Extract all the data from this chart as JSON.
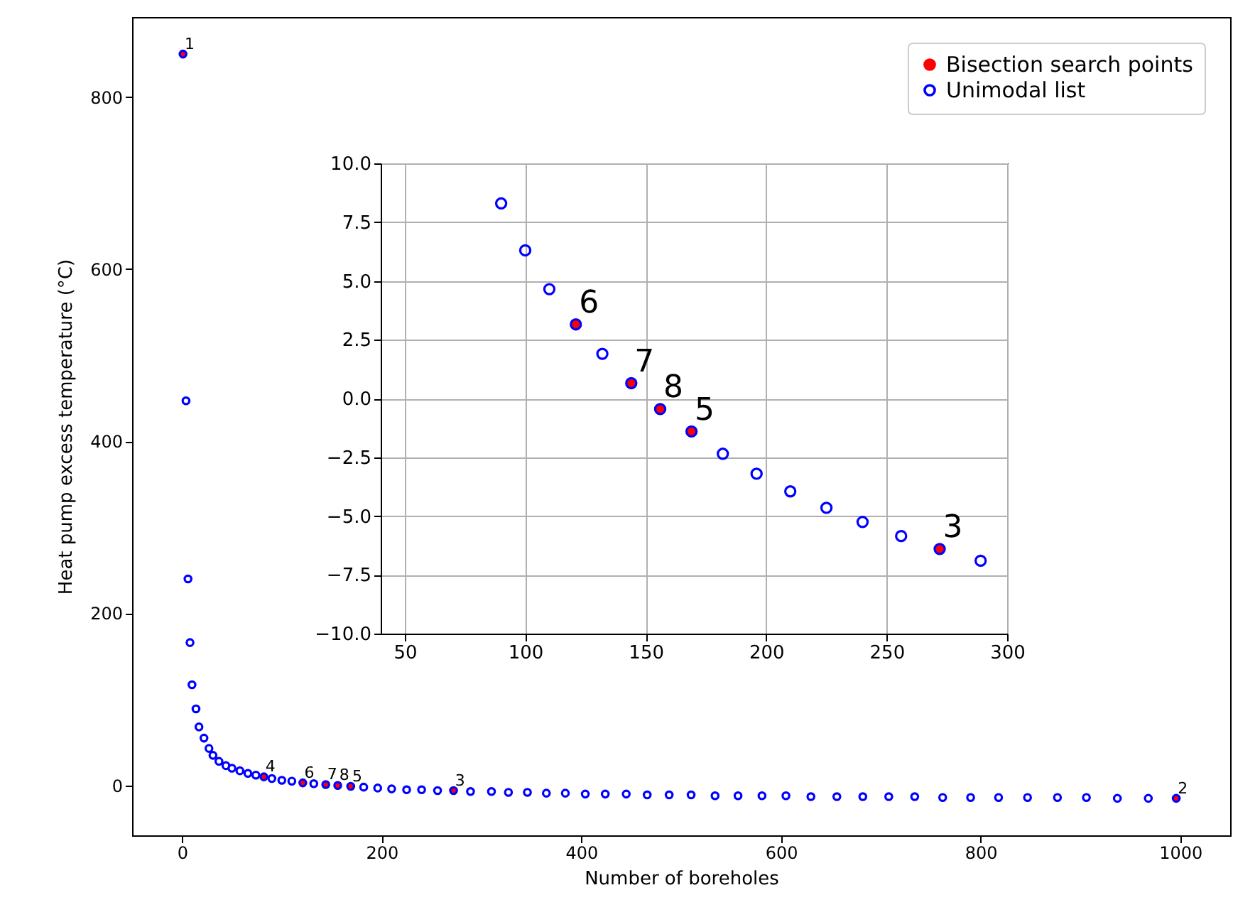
{
  "chart_data": [
    {
      "type": "scatter",
      "xlabel": "Number of boreholes",
      "ylabel": "Heat pump excess temperature (°C)",
      "xlim": [
        -50,
        1050
      ],
      "ylim": [
        -58,
        893
      ],
      "xticks": [
        0,
        200,
        400,
        600,
        800,
        1000
      ],
      "yticks": [
        0,
        200,
        400,
        600,
        800
      ],
      "grid": false,
      "legend": "top right",
      "marker": "circle",
      "annotations": [
        {
          "text": "1",
          "x": 1,
          "y": 850
        },
        {
          "text": "2",
          "x": 996,
          "y": -15
        },
        {
          "text": "3",
          "x": 272,
          "y": -6
        },
        {
          "text": "4",
          "x": 82,
          "y": 10
        },
        {
          "text": "5",
          "x": 169,
          "y": -1
        },
        {
          "text": "6",
          "x": 121,
          "y": 3
        },
        {
          "text": "7",
          "x": 144,
          "y": 1
        },
        {
          "text": "8",
          "x": 156,
          "y": 0
        }
      ],
      "series": [
        {
          "name": "Bisection search points",
          "color": "#ff0000",
          "x": [
            1,
            996,
            272,
            82,
            169,
            121,
            144,
            156
          ],
          "values": [
            850,
            -15,
            -6,
            10,
            -1,
            3,
            1,
            0
          ]
        },
        {
          "name": "Unimodal list",
          "color": "#0000ff",
          "x": [
            1,
            4,
            6,
            8,
            10,
            14,
            17,
            22,
            27,
            31,
            37,
            44,
            50,
            58,
            66,
            74,
            82,
            90,
            100,
            110,
            121,
            132,
            144,
            156,
            169,
            182,
            196,
            210,
            225,
            240,
            256,
            272,
            289,
            310,
            327,
            346,
            365,
            384,
            404,
            424,
            445,
            466,
            488,
            510,
            534,
            557,
            581,
            605,
            630,
            656,
            682,
            708,
            734,
            762,
            790,
            818,
            847,
            877,
            906,
            937,
            968,
            996
          ],
          "values": [
            850,
            447,
            240,
            166,
            117,
            89,
            68,
            55,
            43,
            35,
            28,
            23,
            20,
            17,
            14,
            12,
            10,
            8,
            6,
            5,
            3,
            2,
            1,
            0,
            -1,
            -2,
            -3,
            -4,
            -5,
            -5,
            -6,
            -6,
            -7,
            -7,
            -8,
            -8,
            -9,
            -9,
            -10,
            -10,
            -10,
            -11,
            -11,
            -11,
            -12,
            -12,
            -12,
            -12,
            -13,
            -13,
            -13,
            -13,
            -13,
            -14,
            -14,
            -14,
            -14,
            -14,
            -14,
            -15,
            -15,
            -15
          ]
        }
      ]
    },
    {
      "type": "scatter",
      "xlim": [
        40,
        300
      ],
      "ylim": [
        -10,
        10
      ],
      "xticks": [
        50,
        100,
        150,
        200,
        250,
        300
      ],
      "yticks": [
        {
          "value": -10,
          "label": "−10.0"
        },
        {
          "value": -7.5,
          "label": "−7.5"
        },
        {
          "value": -5,
          "label": "−5.0"
        },
        {
          "value": -2.5,
          "label": "−2.5"
        },
        {
          "value": 0,
          "label": "0.0"
        },
        {
          "value": 2.5,
          "label": "2.5"
        },
        {
          "value": 5,
          "label": "5.0"
        },
        {
          "value": 7.5,
          "label": "7.5"
        },
        {
          "value": 10,
          "label": "10.0"
        }
      ],
      "grid": true,
      "marker": "circle",
      "annotations": [
        {
          "text": "3",
          "x": 272,
          "y": -6.4
        },
        {
          "text": "5",
          "x": 169,
          "y": -1.4
        },
        {
          "text": "6",
          "x": 121,
          "y": 3.15
        },
        {
          "text": "7",
          "x": 144,
          "y": 0.65
        },
        {
          "text": "8",
          "x": 156,
          "y": -0.45
        }
      ],
      "series": [
        {
          "color": "#ff0000",
          "x": [
            272,
            169,
            121,
            144,
            156
          ],
          "values": [
            -6.4,
            -1.4,
            3.15,
            0.65,
            -0.45
          ]
        },
        {
          "color": "#0000ff",
          "x": [
            90,
            100,
            110,
            121,
            132,
            144,
            156,
            169,
            182,
            196,
            210,
            225,
            240,
            256,
            272,
            289
          ],
          "values": [
            8.3,
            6.3,
            4.65,
            3.15,
            1.9,
            0.65,
            -0.45,
            -1.4,
            -2.35,
            -3.2,
            -3.95,
            -4.65,
            -5.25,
            -5.85,
            -6.4,
            -6.9
          ]
        }
      ]
    }
  ]
}
